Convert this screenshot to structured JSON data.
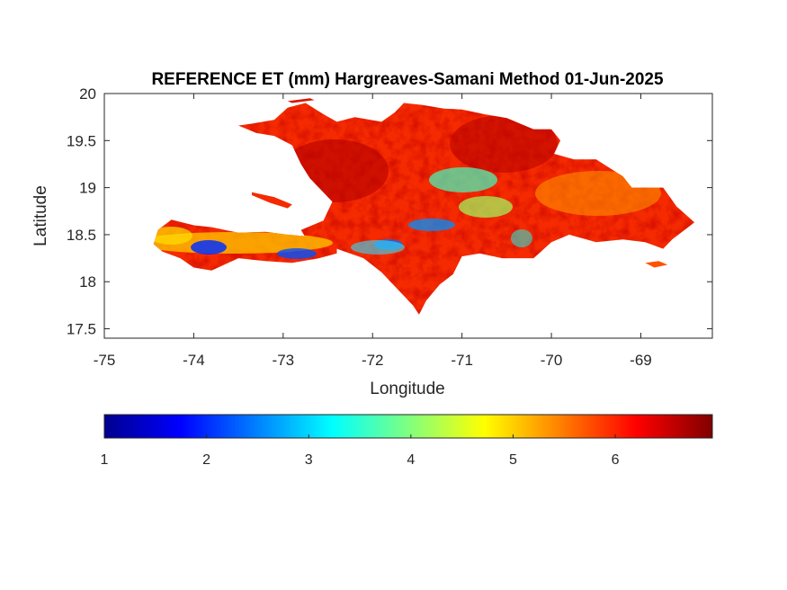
{
  "chart_data": {
    "type": "heatmap",
    "title": "REFERENCE ET (mm) Hargreaves-Samani Method  01-Jun-2025",
    "xlabel": "Longitude",
    "ylabel": "Latitude",
    "xlim": [
      -75,
      -68.2
    ],
    "ylim": [
      17.4,
      20
    ],
    "xticks": [
      -75,
      -74,
      -73,
      -72,
      -71,
      -70,
      -69
    ],
    "xtick_labels": [
      "-75",
      "-74",
      "-73",
      "-72",
      "-71",
      "-70",
      "-69"
    ],
    "yticks": [
      17.5,
      18,
      18.5,
      19,
      19.5,
      20
    ],
    "ytick_labels": [
      "17.5",
      "18",
      "18.5",
      "19",
      "19.5",
      "20"
    ],
    "colorbar": {
      "orientation": "horizontal",
      "position": "bottom",
      "colormap": "jet",
      "range": [
        1,
        6.95
      ],
      "ticks": [
        1,
        2,
        3,
        4,
        5,
        6
      ],
      "tick_labels": [
        "1",
        "2",
        "3",
        "4",
        "5",
        "6"
      ]
    },
    "grid": false,
    "dominant_value_range": [
      5.5,
      6.9
    ],
    "low_value_zones": [
      {
        "region": "southern peninsula of Haiti",
        "approx_value": 2
      },
      {
        "region": "central Cordillera",
        "approx_value": 3.5
      }
    ]
  }
}
